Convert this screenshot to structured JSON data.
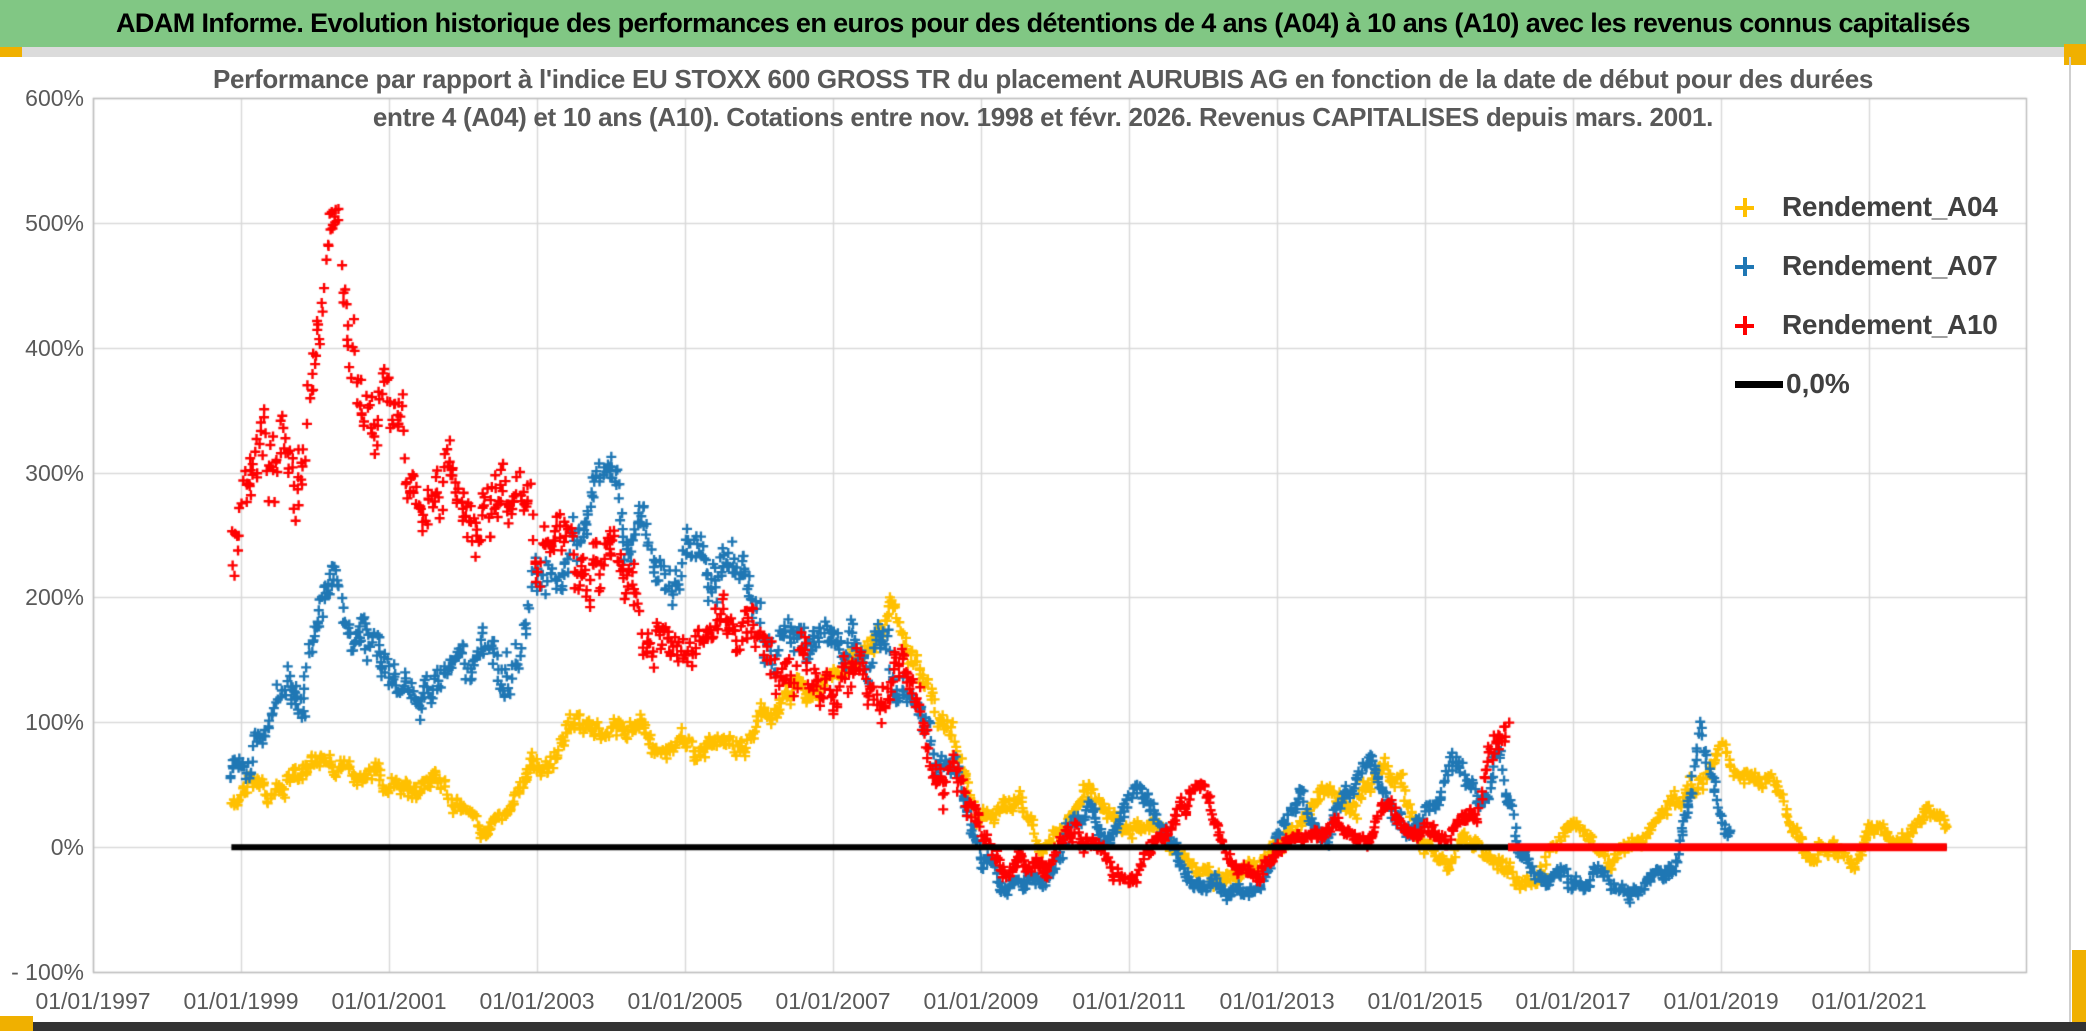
{
  "banner": {
    "title": "ADAM Informe. Evolution historique des performances en euros pour des détentions de 4 ans (A04) à 10 ans (A10) avec les revenus connus capitalisés",
    "background_color": "#81C784",
    "accent_color": "#F0B000",
    "substrip_color": "#DBDBDB",
    "bottom_bar_color": "#333333"
  },
  "chart_data": {
    "type": "scatter",
    "title_line1": "Performance par rapport à l'indice EU STOXX 600 GROSS TR  du placement AURUBIS AG en fonction de la date de début pour des durées",
    "title_line2": "entre 4 (A04) et 10 ans (A10). Cotations entre nov. 1998 et févr. 2026. Revenus CAPITALISES depuis mars. 2001.",
    "grid": true,
    "grid_color": "#D9D9D9",
    "border_color": "#BFBFBF",
    "x_axis": {
      "range_years": [
        1997,
        2023.12
      ],
      "tick_years": [
        1997,
        1999,
        2001,
        2003,
        2005,
        2007,
        2009,
        2011,
        2013,
        2015,
        2017,
        2019,
        2021
      ],
      "tick_labels": [
        "01/01/1997",
        "01/01/1999",
        "01/01/2001",
        "01/01/2003",
        "01/01/2005",
        "01/01/2007",
        "01/01/2009",
        "01/01/2011",
        "01/01/2013",
        "01/01/2015",
        "01/01/2017",
        "01/01/2019",
        "01/01/2021"
      ]
    },
    "y_axis": {
      "range_percent": [
        -100,
        600
      ],
      "tick_values": [
        600,
        500,
        400,
        300,
        200,
        100,
        0,
        -100
      ],
      "tick_labels": [
        "600%",
        "500%",
        "400%",
        "300%",
        "200%",
        "100%",
        "0%",
        "- 100%"
      ]
    },
    "legend": {
      "position": "top-right",
      "entries": [
        {
          "label": "Rendement_A04",
          "marker": "plus",
          "color": "#FFC000"
        },
        {
          "label": "Rendement_A07",
          "marker": "plus",
          "color": "#1F77B4"
        },
        {
          "label": "Rendement_A10",
          "marker": "plus",
          "color": "#FE0000"
        },
        {
          "label": "0,0%",
          "marker": "line",
          "color": "#000000"
        }
      ]
    },
    "zero_line": {
      "label": "0,0%",
      "color": "#000000",
      "value_percent": 0,
      "start_year": 1998.87,
      "end_year": 2022.05,
      "thickness_px": 6
    },
    "zero_segments": [
      {
        "series": "Rendement_A10",
        "color": "#FE0000",
        "value_percent": 0,
        "start_year": 2016.12,
        "end_year": 2022.05,
        "thickness_px": 8
      }
    ],
    "series": [
      {
        "name": "Rendement_A04",
        "color": "#FFC000",
        "marker": "plus",
        "seed": 11,
        "start_year": 1998.87,
        "end_year": 2022.05,
        "points_per_year": 52,
        "anchors_year_mean_spread": [
          [
            1998.87,
            35,
            15
          ],
          [
            1999.1,
            55,
            15
          ],
          [
            1999.4,
            45,
            15
          ],
          [
            1999.7,
            60,
            15
          ],
          [
            2000.0,
            70,
            15
          ],
          [
            2000.2,
            80,
            12
          ],
          [
            2000.5,
            60,
            15
          ],
          [
            2000.8,
            65,
            15
          ],
          [
            2001.1,
            55,
            15
          ],
          [
            2001.4,
            50,
            15
          ],
          [
            2001.7,
            55,
            15
          ],
          [
            2002.0,
            35,
            12
          ],
          [
            2002.3,
            10,
            10
          ],
          [
            2002.6,
            25,
            12
          ],
          [
            2002.9,
            55,
            15
          ],
          [
            2003.2,
            75,
            15
          ],
          [
            2003.5,
            90,
            15
          ],
          [
            2003.8,
            85,
            15
          ],
          [
            2004.1,
            100,
            15
          ],
          [
            2004.4,
            95,
            15
          ],
          [
            2004.7,
            80,
            15
          ],
          [
            2005.0,
            85,
            15
          ],
          [
            2005.3,
            75,
            15
          ],
          [
            2005.6,
            95,
            15
          ],
          [
            2005.9,
            90,
            15
          ],
          [
            2006.2,
            110,
            15
          ],
          [
            2006.5,
            130,
            15
          ],
          [
            2006.8,
            125,
            15
          ],
          [
            2007.1,
            145,
            15
          ],
          [
            2007.4,
            165,
            18
          ],
          [
            2007.7,
            180,
            18
          ],
          [
            2007.85,
            195,
            15
          ],
          [
            2008.0,
            160,
            20
          ],
          [
            2008.3,
            120,
            20
          ],
          [
            2008.6,
            80,
            20
          ],
          [
            2008.9,
            30,
            15
          ],
          [
            2009.2,
            20,
            15
          ],
          [
            2009.5,
            35,
            15
          ],
          [
            2009.8,
            -5,
            10
          ],
          [
            2010.1,
            15,
            12
          ],
          [
            2010.4,
            50,
            15
          ],
          [
            2010.7,
            30,
            12
          ],
          [
            2011.0,
            5,
            12
          ],
          [
            2011.3,
            20,
            12
          ],
          [
            2011.6,
            -5,
            10
          ],
          [
            2011.9,
            -15,
            10
          ],
          [
            2012.2,
            -20,
            10
          ],
          [
            2012.5,
            -15,
            10
          ],
          [
            2012.8,
            -5,
            10
          ],
          [
            2013.1,
            10,
            12
          ],
          [
            2013.4,
            30,
            12
          ],
          [
            2013.7,
            45,
            15
          ],
          [
            2014.0,
            40,
            15
          ],
          [
            2014.3,
            55,
            15
          ],
          [
            2014.6,
            50,
            15
          ],
          [
            2014.9,
            10,
            12
          ],
          [
            2015.2,
            -10,
            10
          ],
          [
            2015.5,
            5,
            12
          ],
          [
            2015.8,
            -15,
            10
          ],
          [
            2016.1,
            -5,
            12
          ],
          [
            2016.35,
            -30,
            8
          ],
          [
            2016.6,
            -10,
            12
          ],
          [
            2016.9,
            20,
            12
          ],
          [
            2017.2,
            5,
            12
          ],
          [
            2017.5,
            -10,
            10
          ],
          [
            2017.8,
            5,
            12
          ],
          [
            2018.1,
            20,
            12
          ],
          [
            2018.4,
            35,
            12
          ],
          [
            2018.7,
            55,
            15
          ],
          [
            2019.0,
            75,
            12
          ],
          [
            2019.3,
            60,
            12
          ],
          [
            2019.6,
            50,
            12
          ],
          [
            2019.9,
            35,
            12
          ],
          [
            2020.2,
            -10,
            10
          ],
          [
            2020.5,
            5,
            12
          ],
          [
            2020.8,
            -20,
            8
          ],
          [
            2021.0,
            10,
            12
          ],
          [
            2021.3,
            5,
            10
          ],
          [
            2021.6,
            20,
            12
          ],
          [
            2021.8,
            30,
            10
          ],
          [
            2022.05,
            10,
            8
          ]
        ]
      },
      {
        "name": "Rendement_A07",
        "color": "#1F77B4",
        "marker": "plus",
        "seed": 22,
        "start_year": 1998.87,
        "end_year": 2019.12,
        "points_per_year": 52,
        "anchors_year_mean_spread": [
          [
            1998.87,
            55,
            15
          ],
          [
            1999.1,
            80,
            20
          ],
          [
            1999.4,
            110,
            25
          ],
          [
            1999.7,
            130,
            30
          ],
          [
            2000.0,
            160,
            30
          ],
          [
            2000.3,
            205,
            20
          ],
          [
            2000.6,
            150,
            30
          ],
          [
            2000.9,
            130,
            25
          ],
          [
            2001.2,
            125,
            30
          ],
          [
            2001.5,
            110,
            25
          ],
          [
            2001.9,
            140,
            30
          ],
          [
            2002.2,
            150,
            30
          ],
          [
            2002.5,
            165,
            35
          ],
          [
            2002.8,
            175,
            35
          ],
          [
            2003.1,
            200,
            35
          ],
          [
            2003.4,
            230,
            35
          ],
          [
            2003.7,
            265,
            30
          ],
          [
            2003.95,
            285,
            25
          ],
          [
            2004.2,
            260,
            30
          ],
          [
            2004.5,
            245,
            30
          ],
          [
            2004.8,
            235,
            30
          ],
          [
            2005.1,
            210,
            30
          ],
          [
            2005.4,
            230,
            35
          ],
          [
            2005.7,
            215,
            30
          ],
          [
            2006.0,
            190,
            30
          ],
          [
            2006.3,
            170,
            30
          ],
          [
            2006.6,
            185,
            30
          ],
          [
            2006.9,
            165,
            25
          ],
          [
            2007.2,
            150,
            25
          ],
          [
            2007.5,
            155,
            25
          ],
          [
            2007.8,
            140,
            25
          ],
          [
            2008.1,
            110,
            25
          ],
          [
            2008.4,
            75,
            20
          ],
          [
            2008.7,
            50,
            20
          ],
          [
            2009.0,
            0,
            15
          ],
          [
            2009.3,
            -30,
            10
          ],
          [
            2009.6,
            -20,
            12
          ],
          [
            2009.9,
            -25,
            10
          ],
          [
            2010.2,
            20,
            15
          ],
          [
            2010.5,
            30,
            12
          ],
          [
            2010.8,
            5,
            12
          ],
          [
            2011.1,
            35,
            12
          ],
          [
            2011.45,
            15,
            12
          ],
          [
            2011.8,
            -25,
            12
          ],
          [
            2012.1,
            -35,
            10
          ],
          [
            2012.5,
            -38,
            8
          ],
          [
            2012.8,
            -30,
            10
          ],
          [
            2013.1,
            20,
            15
          ],
          [
            2013.35,
            45,
            12
          ],
          [
            2013.6,
            5,
            12
          ],
          [
            2013.9,
            40,
            15
          ],
          [
            2014.2,
            65,
            15
          ],
          [
            2014.5,
            45,
            15
          ],
          [
            2014.8,
            20,
            12
          ],
          [
            2015.1,
            40,
            15
          ],
          [
            2015.5,
            65,
            15
          ],
          [
            2015.8,
            30,
            15
          ],
          [
            2016.0,
            70,
            15
          ],
          [
            2016.3,
            -5,
            12
          ],
          [
            2016.6,
            -25,
            10
          ],
          [
            2016.9,
            -15,
            12
          ],
          [
            2017.2,
            -30,
            10
          ],
          [
            2017.5,
            -20,
            12
          ],
          [
            2017.8,
            -35,
            10
          ],
          [
            2018.1,
            -20,
            12
          ],
          [
            2018.4,
            -5,
            12
          ],
          [
            2018.6,
            40,
            15
          ],
          [
            2018.72,
            95,
            12
          ],
          [
            2018.85,
            45,
            12
          ],
          [
            2019.0,
            25,
            10
          ],
          [
            2019.12,
            15,
            8
          ]
        ]
      },
      {
        "name": "Rendement_A10",
        "color": "#FE0000",
        "marker": "plus",
        "seed": 33,
        "start_year": 1998.87,
        "end_year": 2016.12,
        "points_per_year": 52,
        "anchors_year_mean_spread": [
          [
            1998.87,
            250,
            60
          ],
          [
            1999.2,
            280,
            50
          ],
          [
            1999.5,
            300,
            55
          ],
          [
            1999.8,
            330,
            60
          ],
          [
            2000.0,
            420,
            70
          ],
          [
            2000.25,
            500,
            45
          ],
          [
            2000.45,
            420,
            50
          ],
          [
            2000.7,
            390,
            40
          ],
          [
            2000.9,
            350,
            45
          ],
          [
            2001.2,
            300,
            50
          ],
          [
            2001.5,
            270,
            40
          ],
          [
            2001.8,
            300,
            45
          ],
          [
            2002.1,
            290,
            40
          ],
          [
            2002.4,
            250,
            40
          ],
          [
            2002.7,
            280,
            40
          ],
          [
            2003.0,
            240,
            35
          ],
          [
            2003.3,
            245,
            30
          ],
          [
            2003.7,
            230,
            35
          ],
          [
            2004.0,
            225,
            35
          ],
          [
            2004.4,
            180,
            35
          ],
          [
            2004.8,
            160,
            30
          ],
          [
            2005.2,
            155,
            30
          ],
          [
            2005.5,
            180,
            35
          ],
          [
            2005.8,
            150,
            30
          ],
          [
            2006.1,
            160,
            30
          ],
          [
            2006.5,
            150,
            35
          ],
          [
            2006.9,
            130,
            30
          ],
          [
            2007.3,
            140,
            30
          ],
          [
            2007.7,
            120,
            30
          ],
          [
            2007.95,
            165,
            25
          ],
          [
            2008.2,
            110,
            30
          ],
          [
            2008.5,
            60,
            25
          ],
          [
            2008.8,
            20,
            20
          ],
          [
            2009.1,
            -5,
            15
          ],
          [
            2009.5,
            -15,
            12
          ],
          [
            2009.9,
            -8,
            12
          ],
          [
            2010.3,
            15,
            15
          ],
          [
            2010.7,
            -5,
            12
          ],
          [
            2011.0,
            -25,
            10
          ],
          [
            2011.4,
            5,
            12
          ],
          [
            2011.75,
            30,
            12
          ],
          [
            2012.0,
            55,
            10
          ],
          [
            2012.3,
            -5,
            12
          ],
          [
            2012.6,
            -20,
            10
          ],
          [
            2012.9,
            -10,
            10
          ],
          [
            2013.2,
            5,
            10
          ],
          [
            2013.6,
            15,
            12
          ],
          [
            2013.9,
            10,
            10
          ],
          [
            2014.2,
            5,
            10
          ],
          [
            2014.5,
            25,
            12
          ],
          [
            2014.8,
            10,
            10
          ],
          [
            2015.1,
            5,
            10
          ],
          [
            2015.4,
            20,
            12
          ],
          [
            2015.7,
            30,
            12
          ],
          [
            2015.95,
            90,
            30
          ],
          [
            2016.12,
            120,
            15
          ]
        ]
      }
    ]
  }
}
